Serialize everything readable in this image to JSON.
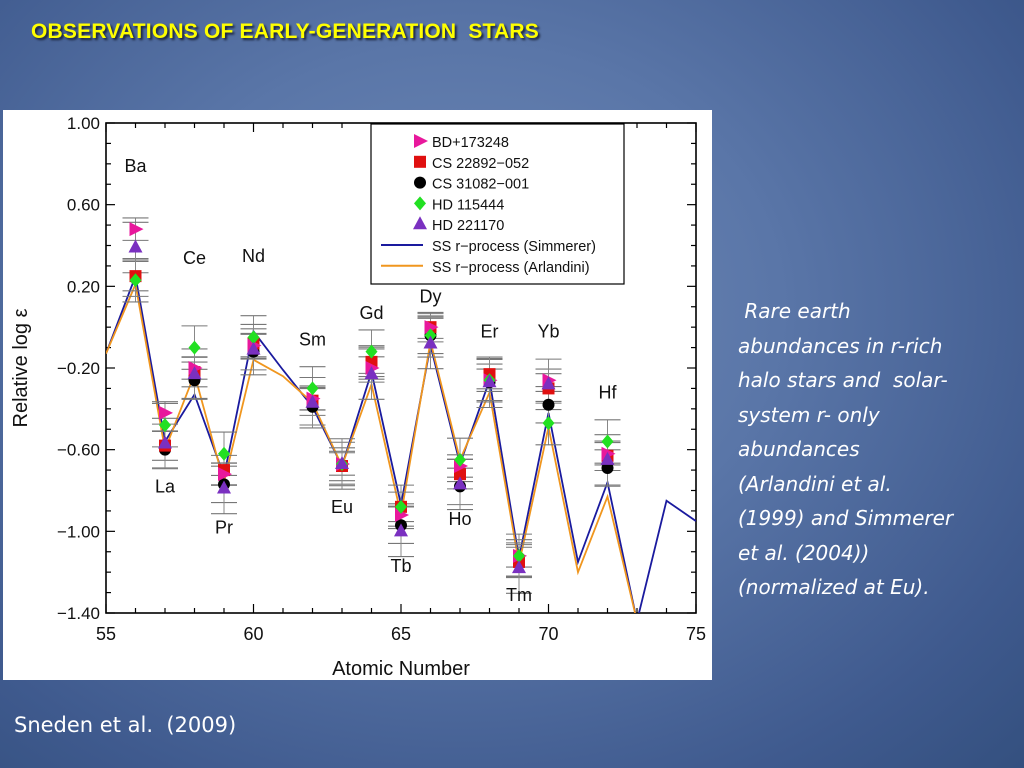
{
  "slide": {
    "title": "OBSERVATIONS OF EARLY-GENERATION  STARS",
    "caption_lines": [
      " Rare earth",
      "abundances in r-rich",
      "halo stars and  solar-",
      "system r- only",
      "abundances",
      "(Arlandini et al.",
      "(1999) and Simmerer",
      "et al. (2004))",
      "(normalized at Eu)."
    ],
    "citation": "Sneden et al.  (2009)"
  },
  "colors": {
    "title": "#ffff00",
    "simmerer_line": "#1a1a9e",
    "arlandini_line": "#f0961e",
    "bd": "#e8189c",
    "cs22892": "#e01010",
    "cs31082": "#000000",
    "hd115444": "#22e022",
    "hd221170": "#7a30c0"
  },
  "chart_data": {
    "type": "scatter",
    "title": "",
    "xlabel": "Atomic Number",
    "ylabel": "Relative log ε",
    "xlim": [
      55,
      75
    ],
    "ylim": [
      -1.4,
      1.0
    ],
    "x_ticks": [
      "55",
      "60",
      "65",
      "70",
      "75"
    ],
    "y_ticks": [
      "1.00",
      "0.60",
      "0.20",
      "−0.20",
      "−0.60",
      "−1.00",
      "−1.40"
    ],
    "grid": false,
    "legend_position": "top-right",
    "element_labels": [
      {
        "x": 56,
        "label": "Ba",
        "y": 0.76
      },
      {
        "x": 57,
        "label": "La",
        "y": -0.81
      },
      {
        "x": 58,
        "label": "Ce",
        "y": 0.31
      },
      {
        "x": 59,
        "label": "Pr",
        "y": -1.01
      },
      {
        "x": 60,
        "label": "Nd",
        "y": 0.32
      },
      {
        "x": 62,
        "label": "Sm",
        "y": -0.09
      },
      {
        "x": 63,
        "label": "Eu",
        "y": -0.91
      },
      {
        "x": 64,
        "label": "Gd",
        "y": 0.04
      },
      {
        "x": 65,
        "label": "Tb",
        "y": -1.2
      },
      {
        "x": 66,
        "label": "Dy",
        "y": 0.12
      },
      {
        "x": 67,
        "label": "Ho",
        "y": -0.97
      },
      {
        "x": 68,
        "label": "Er",
        "y": -0.05
      },
      {
        "x": 70,
        "label": "Yb",
        "y": -0.05
      },
      {
        "x": 72,
        "label": "Hf",
        "y": -0.35
      },
      {
        "x": 69,
        "label": "Tm",
        "y": -1.34
      }
    ],
    "series": [
      {
        "name": "BD+173248",
        "marker": "triangle-right",
        "color": "#e8189c",
        "x": [
          56,
          57,
          58,
          59,
          60,
          62,
          63,
          64,
          65,
          66,
          67,
          68,
          69,
          70,
          72
        ],
        "y": [
          0.48,
          -0.42,
          -0.2,
          -0.72,
          -0.09,
          -0.35,
          -0.67,
          -0.2,
          -0.92,
          0.0,
          -0.68,
          -0.26,
          -1.12,
          -0.26,
          -0.62
        ]
      },
      {
        "name": "CS 22892−052",
        "marker": "square",
        "color": "#e01010",
        "x": [
          56,
          57,
          58,
          59,
          60,
          62,
          63,
          64,
          65,
          66,
          67,
          68,
          69,
          70,
          72
        ],
        "y": [
          0.25,
          -0.58,
          -0.22,
          -0.7,
          -0.08,
          -0.36,
          -0.68,
          -0.17,
          -0.88,
          0.0,
          -0.72,
          -0.23,
          -1.15,
          -0.3,
          -0.63
        ]
      },
      {
        "name": "CS 31082−001",
        "marker": "circle",
        "color": "#000000",
        "x": [
          56,
          57,
          58,
          59,
          60,
          62,
          63,
          64,
          65,
          66,
          67,
          68,
          69,
          70,
          72
        ],
        "y": [
          0.24,
          -0.6,
          -0.26,
          -0.77,
          -0.12,
          -0.39,
          -0.68,
          -0.18,
          -0.97,
          -0.04,
          -0.78,
          -0.27,
          -1.13,
          -0.38,
          -0.69
        ]
      },
      {
        "name": "HD 115444",
        "marker": "diamond",
        "color": "#22e022",
        "x": [
          56,
          57,
          58,
          59,
          60,
          62,
          63,
          64,
          65,
          66,
          67,
          68,
          69,
          70,
          72
        ],
        "y": [
          0.23,
          -0.48,
          -0.1,
          -0.62,
          -0.05,
          -0.3,
          -0.67,
          -0.12,
          -0.88,
          -0.04,
          -0.65,
          -0.26,
          -1.12,
          -0.47,
          -0.56
        ]
      },
      {
        "name": "HD 221170",
        "marker": "triangle-up",
        "color": "#7a30c0",
        "x": [
          56,
          57,
          58,
          59,
          60,
          62,
          63,
          64,
          65,
          66,
          67,
          68,
          69,
          70,
          72
        ],
        "y": [
          0.39,
          -0.57,
          -0.23,
          -0.79,
          -0.11,
          -0.37,
          -0.67,
          -0.23,
          -1.0,
          -0.08,
          -0.77,
          -0.27,
          -1.18,
          -0.28,
          -0.65
        ]
      },
      {
        "name": "SS r−process (Simmerer)",
        "marker": "line",
        "color": "#1a1a9e",
        "x": [
          55,
          56,
          57,
          58,
          59,
          60,
          61,
          62,
          63,
          64,
          65,
          66,
          67,
          68,
          69,
          70,
          71,
          72,
          73,
          74,
          75
        ],
        "y": [
          -0.13,
          0.25,
          -0.56,
          -0.33,
          -0.73,
          -0.02,
          -0.21,
          -0.39,
          -0.68,
          -0.22,
          -0.87,
          -0.09,
          -0.67,
          -0.26,
          -1.13,
          -0.42,
          -1.15,
          -0.76,
          -1.44,
          -0.85,
          -0.95
        ]
      },
      {
        "name": "SS r−process (Arlandini)",
        "marker": "line",
        "color": "#f0961e",
        "x": [
          55,
          56,
          57,
          58,
          59,
          60,
          61,
          62,
          63,
          64,
          65,
          66,
          67,
          68,
          69,
          70,
          71,
          72,
          73
        ],
        "y": [
          -0.13,
          0.21,
          -0.6,
          -0.23,
          -0.76,
          -0.16,
          -0.24,
          -0.37,
          -0.68,
          -0.28,
          -0.92,
          -0.07,
          -0.65,
          -0.32,
          -1.16,
          -0.49,
          -1.2,
          -0.83,
          -1.44
        ]
      }
    ]
  }
}
